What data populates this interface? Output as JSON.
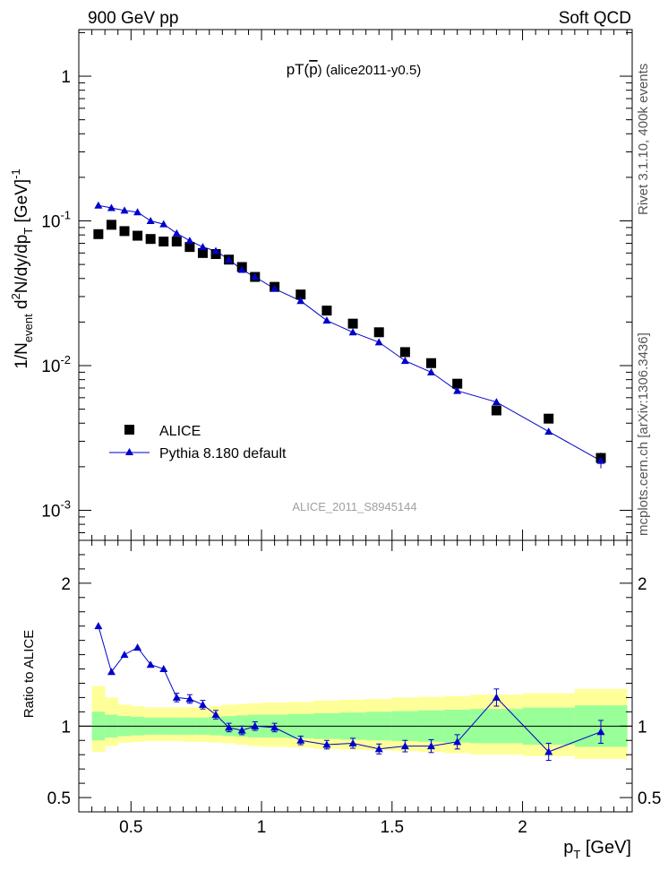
{
  "header": {
    "left_label": "900 GeV pp",
    "right_label": "Soft QCD"
  },
  "side_labels": {
    "rivet": "Rivet 3.1.10,  400k events",
    "mcplots": "mcplots.cern.ch [arXiv:1306.3436]"
  },
  "watermark": "ALICE_2011_S8945144",
  "colors": {
    "data": "#000000",
    "mc": "#0000cc",
    "band_inner": "#99ff99",
    "band_outer": "#ffff99",
    "watermark": "#a0a0a0"
  },
  "chart_data": [
    {
      "type": "scatter",
      "title": "pT(p̄) (alice2011-y0.5)",
      "title_parts": {
        "prefix": "pT(",
        "particle": "p",
        "suffix": ") (alice2011-y0.5)"
      },
      "xlabel": "p_T [GeV]",
      "ylabel": "1/N_event d²N/dy/dp_T [GeV]^-1",
      "ylabel_parts": {
        "a": "1/N",
        "a_sub": "event",
        "b": " d",
        "b_sup": "2",
        "c": "N/dy/dp",
        "c_sub": "T",
        "d": " [GeV]",
        "d_sup": "-1"
      },
      "yscale": "log",
      "xlim": [
        0.3,
        2.42
      ],
      "ylim": [
        0.00062,
        2.1
      ],
      "x_ticks": [
        {
          "value": 0.5,
          "label": "0.5"
        },
        {
          "value": 1.0,
          "label": "1"
        },
        {
          "value": 1.5,
          "label": "1.5"
        },
        {
          "value": 2.0,
          "label": "2"
        }
      ],
      "y_ticks": [
        {
          "value": 1,
          "base": "1",
          "exp": ""
        },
        {
          "value": 0.1,
          "base": "10",
          "exp": "-1"
        },
        {
          "value": 0.01,
          "base": "10",
          "exp": "-2"
        },
        {
          "value": 0.001,
          "base": "10",
          "exp": "-3"
        }
      ],
      "legend_position": "lower-left",
      "series": [
        {
          "name": "ALICE",
          "marker": "square",
          "x": [
            0.375,
            0.425,
            0.475,
            0.525,
            0.575,
            0.625,
            0.675,
            0.725,
            0.775,
            0.825,
            0.875,
            0.925,
            0.975,
            1.05,
            1.15,
            1.25,
            1.35,
            1.45,
            1.55,
            1.65,
            1.75,
            1.9,
            2.1,
            2.3
          ],
          "y": [
            0.081,
            0.094,
            0.085,
            0.079,
            0.075,
            0.072,
            0.072,
            0.066,
            0.06,
            0.059,
            0.054,
            0.048,
            0.041,
            0.035,
            0.031,
            0.024,
            0.0195,
            0.017,
            0.0124,
            0.0104,
            0.0075,
            0.0049,
            0.0043,
            0.0023
          ]
        },
        {
          "name": "Pythia 8.180 default",
          "marker": "triangle",
          "x": [
            0.375,
            0.425,
            0.475,
            0.525,
            0.575,
            0.625,
            0.675,
            0.725,
            0.775,
            0.825,
            0.875,
            0.925,
            0.975,
            1.05,
            1.15,
            1.25,
            1.35,
            1.45,
            1.55,
            1.65,
            1.75,
            1.9,
            2.1,
            2.3
          ],
          "y": [
            0.128,
            0.123,
            0.118,
            0.115,
            0.1,
            0.095,
            0.082,
            0.073,
            0.066,
            0.062,
            0.054,
            0.046,
            0.041,
            0.034,
            0.028,
            0.0205,
            0.017,
            0.0145,
            0.0108,
            0.009,
            0.0067,
            0.0056,
            0.0035,
            0.0022
          ]
        }
      ]
    },
    {
      "type": "line",
      "title": "",
      "xlabel": "p_T [GeV]",
      "ylabel": "Ratio to ALICE",
      "xlim": [
        0.3,
        2.42
      ],
      "ylim": [
        0.4,
        2.3
      ],
      "x_ticks": [
        {
          "value": 0.5,
          "label": "0.5"
        },
        {
          "value": 1.0,
          "label": "1"
        },
        {
          "value": 1.5,
          "label": "1.5"
        },
        {
          "value": 2.0,
          "label": "2"
        }
      ],
      "y_ticks": [
        {
          "value": 2,
          "label": "2"
        },
        {
          "value": 1,
          "label": "1"
        },
        {
          "value": 0.5,
          "label": "0.5"
        }
      ],
      "reference_line": 1.0,
      "bands": {
        "x_edges": [
          0.35,
          0.4,
          0.45,
          0.5,
          0.55,
          0.6,
          0.65,
          0.7,
          0.75,
          0.8,
          0.85,
          0.9,
          0.95,
          1.0,
          1.1,
          1.2,
          1.3,
          1.4,
          1.5,
          1.6,
          1.7,
          1.8,
          2.0,
          2.2,
          2.4
        ],
        "inner_low": [
          0.9,
          0.92,
          0.93,
          0.935,
          0.94,
          0.94,
          0.94,
          0.94,
          0.94,
          0.935,
          0.93,
          0.925,
          0.92,
          0.92,
          0.915,
          0.91,
          0.905,
          0.9,
          0.895,
          0.89,
          0.885,
          0.88,
          0.87,
          0.855
        ],
        "inner_high": [
          1.1,
          1.08,
          1.07,
          1.065,
          1.06,
          1.06,
          1.06,
          1.06,
          1.06,
          1.065,
          1.07,
          1.075,
          1.08,
          1.08,
          1.085,
          1.09,
          1.095,
          1.1,
          1.105,
          1.11,
          1.115,
          1.12,
          1.13,
          1.145
        ],
        "outer_low": [
          0.82,
          0.86,
          0.885,
          0.89,
          0.895,
          0.895,
          0.895,
          0.89,
          0.89,
          0.885,
          0.88,
          0.87,
          0.86,
          0.855,
          0.85,
          0.84,
          0.835,
          0.83,
          0.825,
          0.82,
          0.81,
          0.8,
          0.79,
          0.77
        ],
        "outer_high": [
          1.28,
          1.2,
          1.15,
          1.14,
          1.13,
          1.13,
          1.13,
          1.13,
          1.13,
          1.14,
          1.15,
          1.155,
          1.16,
          1.165,
          1.17,
          1.18,
          1.185,
          1.19,
          1.2,
          1.205,
          1.21,
          1.22,
          1.23,
          1.26
        ]
      },
      "series": [
        {
          "name": "Pythia 8.180 default / ALICE",
          "x": [
            0.375,
            0.425,
            0.475,
            0.525,
            0.575,
            0.625,
            0.675,
            0.725,
            0.775,
            0.825,
            0.875,
            0.925,
            0.975,
            1.05,
            1.15,
            1.25,
            1.35,
            1.45,
            1.55,
            1.65,
            1.75,
            1.9,
            2.1,
            2.3
          ],
          "y": [
            1.7,
            1.38,
            1.5,
            1.55,
            1.43,
            1.4,
            1.2,
            1.19,
            1.15,
            1.08,
            0.99,
            0.97,
            1.0,
            0.99,
            0.9,
            0.87,
            0.88,
            0.84,
            0.86,
            0.86,
            0.89,
            1.2,
            0.82,
            0.96
          ],
          "err": [
            0,
            0,
            0,
            0,
            0,
            0,
            0.03,
            0.03,
            0.03,
            0.03,
            0.03,
            0.03,
            0.03,
            0.03,
            0.03,
            0.03,
            0.035,
            0.035,
            0.04,
            0.045,
            0.05,
            0.06,
            0.06,
            0.08
          ]
        }
      ]
    }
  ]
}
